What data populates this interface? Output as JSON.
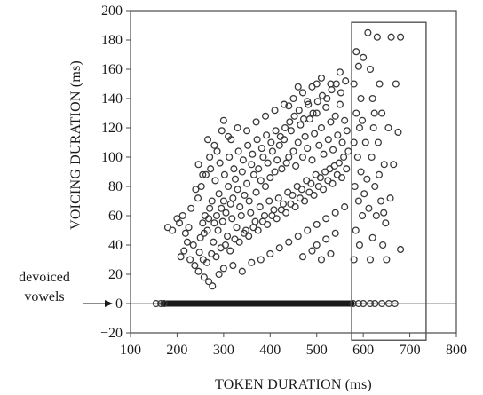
{
  "chart_data": {
    "type": "scatter",
    "xlabel": "TOKEN DURATION (ms)",
    "ylabel": "VOICING DURATION (ms)",
    "xlim": [
      100,
      800
    ],
    "ylim": [
      -20,
      200
    ],
    "x_ticks": [
      100,
      200,
      300,
      400,
      500,
      600,
      700,
      800
    ],
    "y_ticks": [
      -20,
      0,
      20,
      40,
      60,
      80,
      100,
      120,
      140,
      160,
      180,
      200
    ],
    "x_tick_labels": [
      "100",
      "200",
      "300",
      "400",
      "500",
      "600",
      "700",
      "800"
    ],
    "y_tick_labels": [
      "−20",
      "0",
      "20",
      "40",
      "60",
      "80",
      "100",
      "120",
      "140",
      "160",
      "180",
      "200"
    ],
    "grid": false,
    "reference_line_y": 0,
    "highlight_box": {
      "x_range": [
        575,
        735
      ],
      "y_range": [
        -25,
        192
      ]
    },
    "annotation": {
      "lines": [
        "devoiced",
        "vowels"
      ],
      "points_to_y": 0
    },
    "marker": "open-circle",
    "marker_color": "#3a3a3a",
    "series": [
      {
        "points": [
          [
            235,
            40
          ],
          [
            250,
            45
          ],
          [
            255,
            55
          ],
          [
            260,
            60
          ],
          [
            265,
            50
          ],
          [
            270,
            65
          ],
          [
            275,
            70
          ],
          [
            280,
            55
          ],
          [
            285,
            60
          ],
          [
            290,
            75
          ],
          [
            295,
            65
          ],
          [
            300,
            70
          ],
          [
            305,
            62
          ],
          [
            310,
            80
          ],
          [
            315,
            68
          ],
          [
            320,
            72
          ],
          [
            325,
            85
          ],
          [
            330,
            78
          ],
          [
            335,
            66
          ],
          [
            340,
            90
          ],
          [
            345,
            74
          ],
          [
            350,
            82
          ],
          [
            355,
            70
          ],
          [
            360,
            95
          ],
          [
            365,
            88
          ],
          [
            370,
            76
          ],
          [
            375,
            92
          ],
          [
            380,
            84
          ],
          [
            385,
            100
          ],
          [
            390,
            80
          ],
          [
            395,
            96
          ],
          [
            400,
            86
          ],
          [
            405,
            104
          ],
          [
            410,
            90
          ],
          [
            415,
            98
          ],
          [
            420,
            108
          ],
          [
            425,
            92
          ],
          [
            430,
            112
          ],
          [
            435,
            96
          ],
          [
            440,
            100
          ],
          [
            445,
            118
          ],
          [
            450,
            104
          ],
          [
            455,
            94
          ],
          [
            460,
            110
          ],
          [
            465,
            122
          ],
          [
            470,
            100
          ],
          [
            475,
            114
          ],
          [
            480,
            106
          ],
          [
            485,
            126
          ],
          [
            490,
            98
          ],
          [
            495,
            116
          ],
          [
            500,
            130
          ],
          [
            505,
            108
          ],
          [
            510,
            120
          ],
          [
            515,
            102
          ],
          [
            520,
            134
          ],
          [
            525,
            112
          ],
          [
            530,
            124
          ],
          [
            535,
            105
          ],
          [
            540,
            128
          ],
          [
            545,
            115
          ],
          [
            550,
            136
          ],
          [
            555,
            110
          ],
          [
            560,
            125
          ],
          [
            565,
            118
          ],
          [
            245,
            72
          ],
          [
            252,
            80
          ],
          [
            258,
            48
          ],
          [
            262,
            88
          ],
          [
            268,
            58
          ],
          [
            272,
            92
          ],
          [
            278,
            42
          ],
          [
            282,
            84
          ],
          [
            288,
            50
          ],
          [
            292,
            96
          ],
          [
            298,
            56
          ],
          [
            302,
            88
          ],
          [
            308,
            46
          ],
          [
            312,
            100
          ],
          [
            318,
            58
          ],
          [
            322,
            92
          ],
          [
            328,
            52
          ],
          [
            332,
            104
          ],
          [
            338,
            60
          ],
          [
            342,
            98
          ],
          [
            348,
            50
          ],
          [
            352,
            108
          ],
          [
            358,
            62
          ],
          [
            362,
            102
          ],
          [
            368,
            56
          ],
          [
            372,
            112
          ],
          [
            378,
            66
          ],
          [
            382,
            106
          ],
          [
            388,
            60
          ],
          [
            392,
            115
          ],
          [
            398,
            70
          ],
          [
            402,
            110
          ],
          [
            408,
            64
          ],
          [
            412,
            118
          ],
          [
            418,
            72
          ],
          [
            422,
            114
          ],
          [
            428,
            68
          ],
          [
            432,
            120
          ],
          [
            438,
            76
          ],
          [
            442,
            124
          ],
          [
            448,
            74
          ],
          [
            452,
            128
          ],
          [
            458,
            80
          ],
          [
            462,
            132
          ],
          [
            468,
            78
          ],
          [
            472,
            126
          ],
          [
            478,
            84
          ],
          [
            482,
            136
          ],
          [
            488,
            82
          ],
          [
            492,
            130
          ],
          [
            498,
            88
          ],
          [
            502,
            138
          ],
          [
            508,
            86
          ],
          [
            512,
            142
          ],
          [
            518,
            90
          ],
          [
            522,
            140
          ],
          [
            528,
            92
          ],
          [
            532,
            146
          ],
          [
            538,
            94
          ],
          [
            542,
            150
          ],
          [
            548,
            96
          ],
          [
            552,
            144
          ],
          [
            558,
            100
          ],
          [
            562,
            152
          ],
          [
            568,
            104
          ],
          [
            230,
            65
          ],
          [
            240,
            78
          ],
          [
            248,
            35
          ],
          [
            256,
            30
          ],
          [
            264,
            28
          ],
          [
            274,
            34
          ],
          [
            284,
            32
          ],
          [
            294,
            38
          ],
          [
            304,
            40
          ],
          [
            314,
            36
          ],
          [
            324,
            44
          ],
          [
            334,
            42
          ],
          [
            344,
            48
          ],
          [
            354,
            46
          ],
          [
            364,
            52
          ],
          [
            374,
            50
          ],
          [
            384,
            56
          ],
          [
            394,
            54
          ],
          [
            404,
            60
          ],
          [
            414,
            58
          ],
          [
            424,
            64
          ],
          [
            434,
            62
          ],
          [
            444,
            68
          ],
          [
            454,
            66
          ],
          [
            464,
            72
          ],
          [
            474,
            70
          ],
          [
            484,
            76
          ],
          [
            494,
            74
          ],
          [
            504,
            80
          ],
          [
            514,
            78
          ],
          [
            524,
            84
          ],
          [
            534,
            82
          ],
          [
            544,
            88
          ],
          [
            554,
            86
          ],
          [
            564,
            92
          ],
          [
            212,
            60
          ],
          [
            205,
            55
          ],
          [
            218,
            48
          ],
          [
            225,
            52
          ],
          [
            222,
            42
          ],
          [
            215,
            36
          ],
          [
            208,
            32
          ],
          [
            228,
            30
          ],
          [
            238,
            26
          ],
          [
            246,
            22
          ],
          [
            258,
            18
          ],
          [
            268,
            15
          ],
          [
            276,
            12
          ],
          [
            290,
            20
          ],
          [
            300,
            24
          ],
          [
            320,
            26
          ],
          [
            340,
            22
          ],
          [
            360,
            28
          ],
          [
            380,
            30
          ],
          [
            400,
            34
          ],
          [
            420,
            38
          ],
          [
            440,
            42
          ],
          [
            460,
            46
          ],
          [
            480,
            50
          ],
          [
            500,
            54
          ],
          [
            520,
            58
          ],
          [
            540,
            62
          ],
          [
            560,
            66
          ],
          [
            500,
            40
          ],
          [
            520,
            44
          ],
          [
            540,
            48
          ],
          [
            470,
            32
          ],
          [
            490,
            36
          ],
          [
            510,
            30
          ],
          [
            530,
            34
          ],
          [
            280,
            108
          ],
          [
            270,
            100
          ],
          [
            300,
            125
          ],
          [
            310,
            114
          ],
          [
            330,
            120
          ],
          [
            350,
            118
          ],
          [
            370,
            124
          ],
          [
            390,
            128
          ],
          [
            410,
            132
          ],
          [
            430,
            136
          ],
          [
            450,
            140
          ],
          [
            470,
            144
          ],
          [
            490,
            148
          ],
          [
            510,
            154
          ],
          [
            530,
            150
          ],
          [
            550,
            158
          ],
          [
            440,
            135
          ],
          [
            460,
            148
          ],
          [
            480,
            138
          ],
          [
            500,
            150
          ],
          [
            180,
            52
          ],
          [
            190,
            50
          ],
          [
            200,
            58
          ],
          [
            165,
            0
          ],
          [
            255,
            88
          ],
          [
            286,
            104
          ],
          [
            246,
            95
          ],
          [
            266,
            112
          ],
          [
            296,
            118
          ],
          [
            316,
            112
          ],
          [
            585,
            172
          ],
          [
            590,
            162
          ],
          [
            580,
            150
          ],
          [
            595,
            140
          ],
          [
            585,
            130
          ],
          [
            592,
            120
          ],
          [
            580,
            110
          ],
          [
            588,
            100
          ],
          [
            595,
            90
          ],
          [
            582,
            80
          ],
          [
            590,
            70
          ],
          [
            598,
            60
          ],
          [
            584,
            50
          ],
          [
            592,
            40
          ],
          [
            580,
            30
          ],
          [
            600,
            168
          ],
          [
            605,
            110
          ],
          [
            598,
            125
          ],
          [
            608,
            85
          ],
          [
            602,
            75
          ],
          [
            610,
            185
          ],
          [
            615,
            160
          ],
          [
            620,
            140
          ],
          [
            622,
            120
          ],
          [
            618,
            100
          ],
          [
            625,
            80
          ],
          [
            628,
            60
          ],
          [
            620,
            45
          ],
          [
            615,
            30
          ],
          [
            630,
            182
          ],
          [
            635,
            150
          ],
          [
            640,
            130
          ],
          [
            632,
            110
          ],
          [
            645,
            95
          ],
          [
            638,
            70
          ],
          [
            648,
            55
          ],
          [
            642,
            40
          ],
          [
            650,
            30
          ],
          [
            660,
            182
          ],
          [
            665,
            95
          ],
          [
            670,
            150
          ],
          [
            675,
            117
          ],
          [
            680,
            182
          ],
          [
            680,
            37
          ],
          [
            612,
            65
          ],
          [
            624,
            130
          ],
          [
            634,
            88
          ],
          [
            644,
            62
          ],
          [
            654,
            120
          ],
          [
            658,
            72
          ],
          [
            590,
            0
          ],
          [
            600,
            0
          ],
          [
            615,
            0
          ],
          [
            625,
            0
          ],
          [
            640,
            0
          ],
          [
            655,
            0
          ],
          [
            668,
            0
          ],
          [
            578,
            0
          ],
          [
            155,
            0
          ],
          [
            172,
            0
          ]
        ]
      }
    ]
  }
}
